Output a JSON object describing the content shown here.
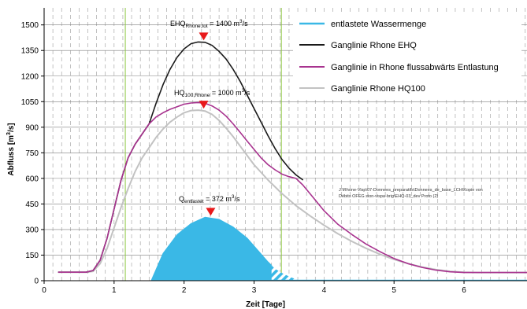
{
  "chart_data": {
    "type": "line",
    "xlabel": "Zeit [Tage]",
    "ylabel": "Abfluss [m³/s]",
    "ylabel_parts": {
      "main": "Abfluss [m",
      "sup": "3",
      "tail": "/s]"
    },
    "xlim": [
      0,
      6.9
    ],
    "ylim": [
      0,
      1600
    ],
    "x_ticks": [
      0,
      1,
      2,
      3,
      4,
      5,
      6
    ],
    "y_ticks": [
      0,
      150,
      300,
      450,
      600,
      750,
      900,
      1050,
      1200,
      1350,
      1500
    ],
    "grid": {
      "vertical_dashed_step": 0.125,
      "horizontal_step": 150
    },
    "green_markers_x": [
      1.16,
      3.39
    ],
    "colors": {
      "relief": "#3ab8e6",
      "ehq": "#1a1a1a",
      "downstream": "#a8338f",
      "hq100": "#c2c2c2",
      "marker": "#e8191b",
      "green": "#8cc63f"
    },
    "series": [
      {
        "name": "entlastete Wassermenge",
        "color": "#3ab8e6",
        "x": [
          1.53,
          1.7,
          1.9,
          2.1,
          2.3,
          2.5,
          2.7,
          2.9,
          3.05,
          3.2,
          3.25,
          3.3,
          3.4,
          3.5,
          3.6,
          3.65
        ],
        "y": [
          0,
          160,
          270,
          335,
          372,
          360,
          315,
          250,
          180,
          110,
          90,
          70,
          45,
          25,
          8,
          0
        ]
      },
      {
        "name": "Ganglinie Rhone EHQ",
        "color": "#1a1a1a",
        "x": [
          0.2,
          0.3,
          0.5,
          0.6,
          0.7,
          0.8,
          0.9,
          1.0,
          1.1,
          1.2,
          1.3,
          1.4,
          1.5,
          1.6,
          1.7,
          1.8,
          1.9,
          2.0,
          2.1,
          2.2,
          2.3,
          2.4,
          2.5,
          2.6,
          2.7,
          2.8,
          2.9,
          3.0,
          3.1,
          3.2,
          3.3,
          3.4,
          3.5,
          3.6,
          3.7
        ],
        "y": [
          50,
          50,
          50,
          50,
          60,
          120,
          250,
          420,
          590,
          720,
          800,
          860,
          920,
          1040,
          1150,
          1240,
          1310,
          1360,
          1390,
          1400,
          1398,
          1380,
          1345,
          1300,
          1240,
          1170,
          1090,
          1010,
          930,
          850,
          775,
          710,
          660,
          620,
          590
        ]
      },
      {
        "name": "Ganglinie in Rhone flussabwärts Entlastung",
        "color": "#a8338f",
        "x": [
          0.2,
          0.3,
          0.5,
          0.6,
          0.7,
          0.8,
          0.9,
          1.0,
          1.1,
          1.2,
          1.3,
          1.4,
          1.5,
          1.6,
          1.7,
          1.8,
          1.9,
          2.0,
          2.1,
          2.2,
          2.3,
          2.4,
          2.5,
          2.6,
          2.7,
          2.8,
          2.9,
          3.0,
          3.1,
          3.2,
          3.3,
          3.4,
          3.5,
          3.6,
          3.7,
          3.8,
          3.9,
          4.0,
          4.2,
          4.4,
          4.6,
          4.8,
          5.0,
          5.2,
          5.4,
          5.6,
          5.8,
          6.0,
          6.2,
          6.5,
          6.9
        ],
        "y": [
          50,
          50,
          50,
          50,
          60,
          120,
          250,
          420,
          590,
          720,
          800,
          860,
          920,
          960,
          985,
          1005,
          1020,
          1035,
          1042,
          1045,
          1040,
          1025,
          1000,
          965,
          920,
          870,
          820,
          770,
          720,
          680,
          650,
          625,
          610,
          600,
          560,
          510,
          460,
          410,
          330,
          270,
          215,
          170,
          130,
          100,
          78,
          62,
          52,
          48,
          48,
          48,
          48
        ]
      },
      {
        "name": "Ganglinie Rhone HQ100",
        "color": "#c2c2c2",
        "x": [
          0.2,
          0.3,
          0.5,
          0.6,
          0.7,
          0.8,
          0.9,
          1.0,
          1.1,
          1.2,
          1.3,
          1.4,
          1.5,
          1.6,
          1.7,
          1.8,
          1.9,
          2.0,
          2.1,
          2.2,
          2.3,
          2.4,
          2.5,
          2.6,
          2.7,
          2.8,
          2.9,
          3.0,
          3.2,
          3.4,
          3.6,
          3.8,
          4.0,
          4.2,
          4.4,
          4.6,
          4.8,
          5.0,
          5.2,
          5.4,
          5.6,
          5.8,
          6.0,
          6.2,
          6.5,
          6.9
        ],
        "y": [
          50,
          50,
          50,
          50,
          55,
          100,
          190,
          310,
          430,
          540,
          640,
          720,
          780,
          840,
          890,
          930,
          960,
          985,
          998,
          1000,
          995,
          975,
          940,
          895,
          845,
          790,
          735,
          680,
          590,
          510,
          440,
          380,
          325,
          275,
          230,
          190,
          155,
          125,
          100,
          80,
          65,
          55,
          50,
          48,
          48,
          48
        ]
      }
    ],
    "annotations": [
      {
        "id": "ehq",
        "x": 2.28,
        "y": 1400,
        "main": "EHQ",
        "sub": "Rhone,tot",
        "value": " = 1400 m",
        "sup": "3",
        "tail": "/s"
      },
      {
        "id": "hq100",
        "x": 2.28,
        "y": 1000,
        "main": "HQ",
        "sub": "100,Rhone",
        "value": " = 1000 m",
        "sup": "3",
        "tail": "/s"
      },
      {
        "id": "q",
        "x": 2.38,
        "y": 372,
        "main": "Q",
        "sub": "entlastet",
        "value": " = 372 m",
        "sup": "3",
        "tail": "/s"
      }
    ],
    "note_lines": [
      "J:\\Rhone-Visp\\07-Donnees_preparatifs\\Donnees_de_base_LCH\\Kopie von",
      "Débits OFEG sion-vispa-brig\\EHQ-03_dev Proto (2)"
    ],
    "legend": {
      "position": "top-right",
      "entries": [
        {
          "label": "entlastete Wassermenge",
          "color": "#3ab8e6"
        },
        {
          "label": "Ganglinie Rhone EHQ",
          "color": "#1a1a1a"
        },
        {
          "label": "Ganglinie in Rhone flussabwärts Entlastung",
          "color": "#a8338f"
        },
        {
          "label": "Ganglinie Rhone HQ100",
          "color": "#c2c2c2"
        }
      ]
    }
  }
}
